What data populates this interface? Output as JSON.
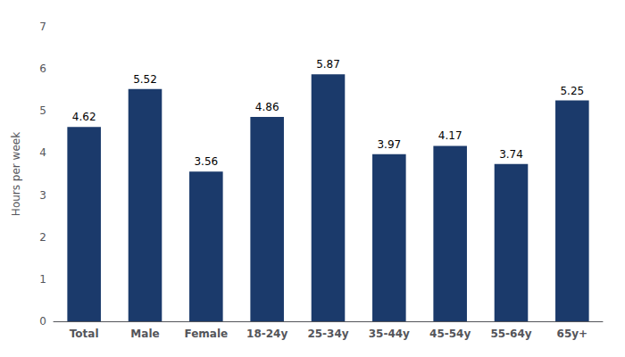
{
  "chart_data": {
    "type": "bar",
    "categories": [
      "Total",
      "Male",
      "Female",
      "18-24y",
      "25-34y",
      "35-44y",
      "45-54y",
      "55-64y",
      "65y+"
    ],
    "values": [
      4.62,
      5.52,
      3.56,
      4.86,
      5.87,
      3.97,
      4.17,
      3.74,
      5.25
    ],
    "color": "#1b3a6b",
    "ylabel": "Hours per week",
    "ylim": [
      0,
      7
    ],
    "yticks": [
      0,
      1,
      2,
      3,
      4,
      5,
      6,
      7
    ],
    "grid": false,
    "data_labels": true
  }
}
